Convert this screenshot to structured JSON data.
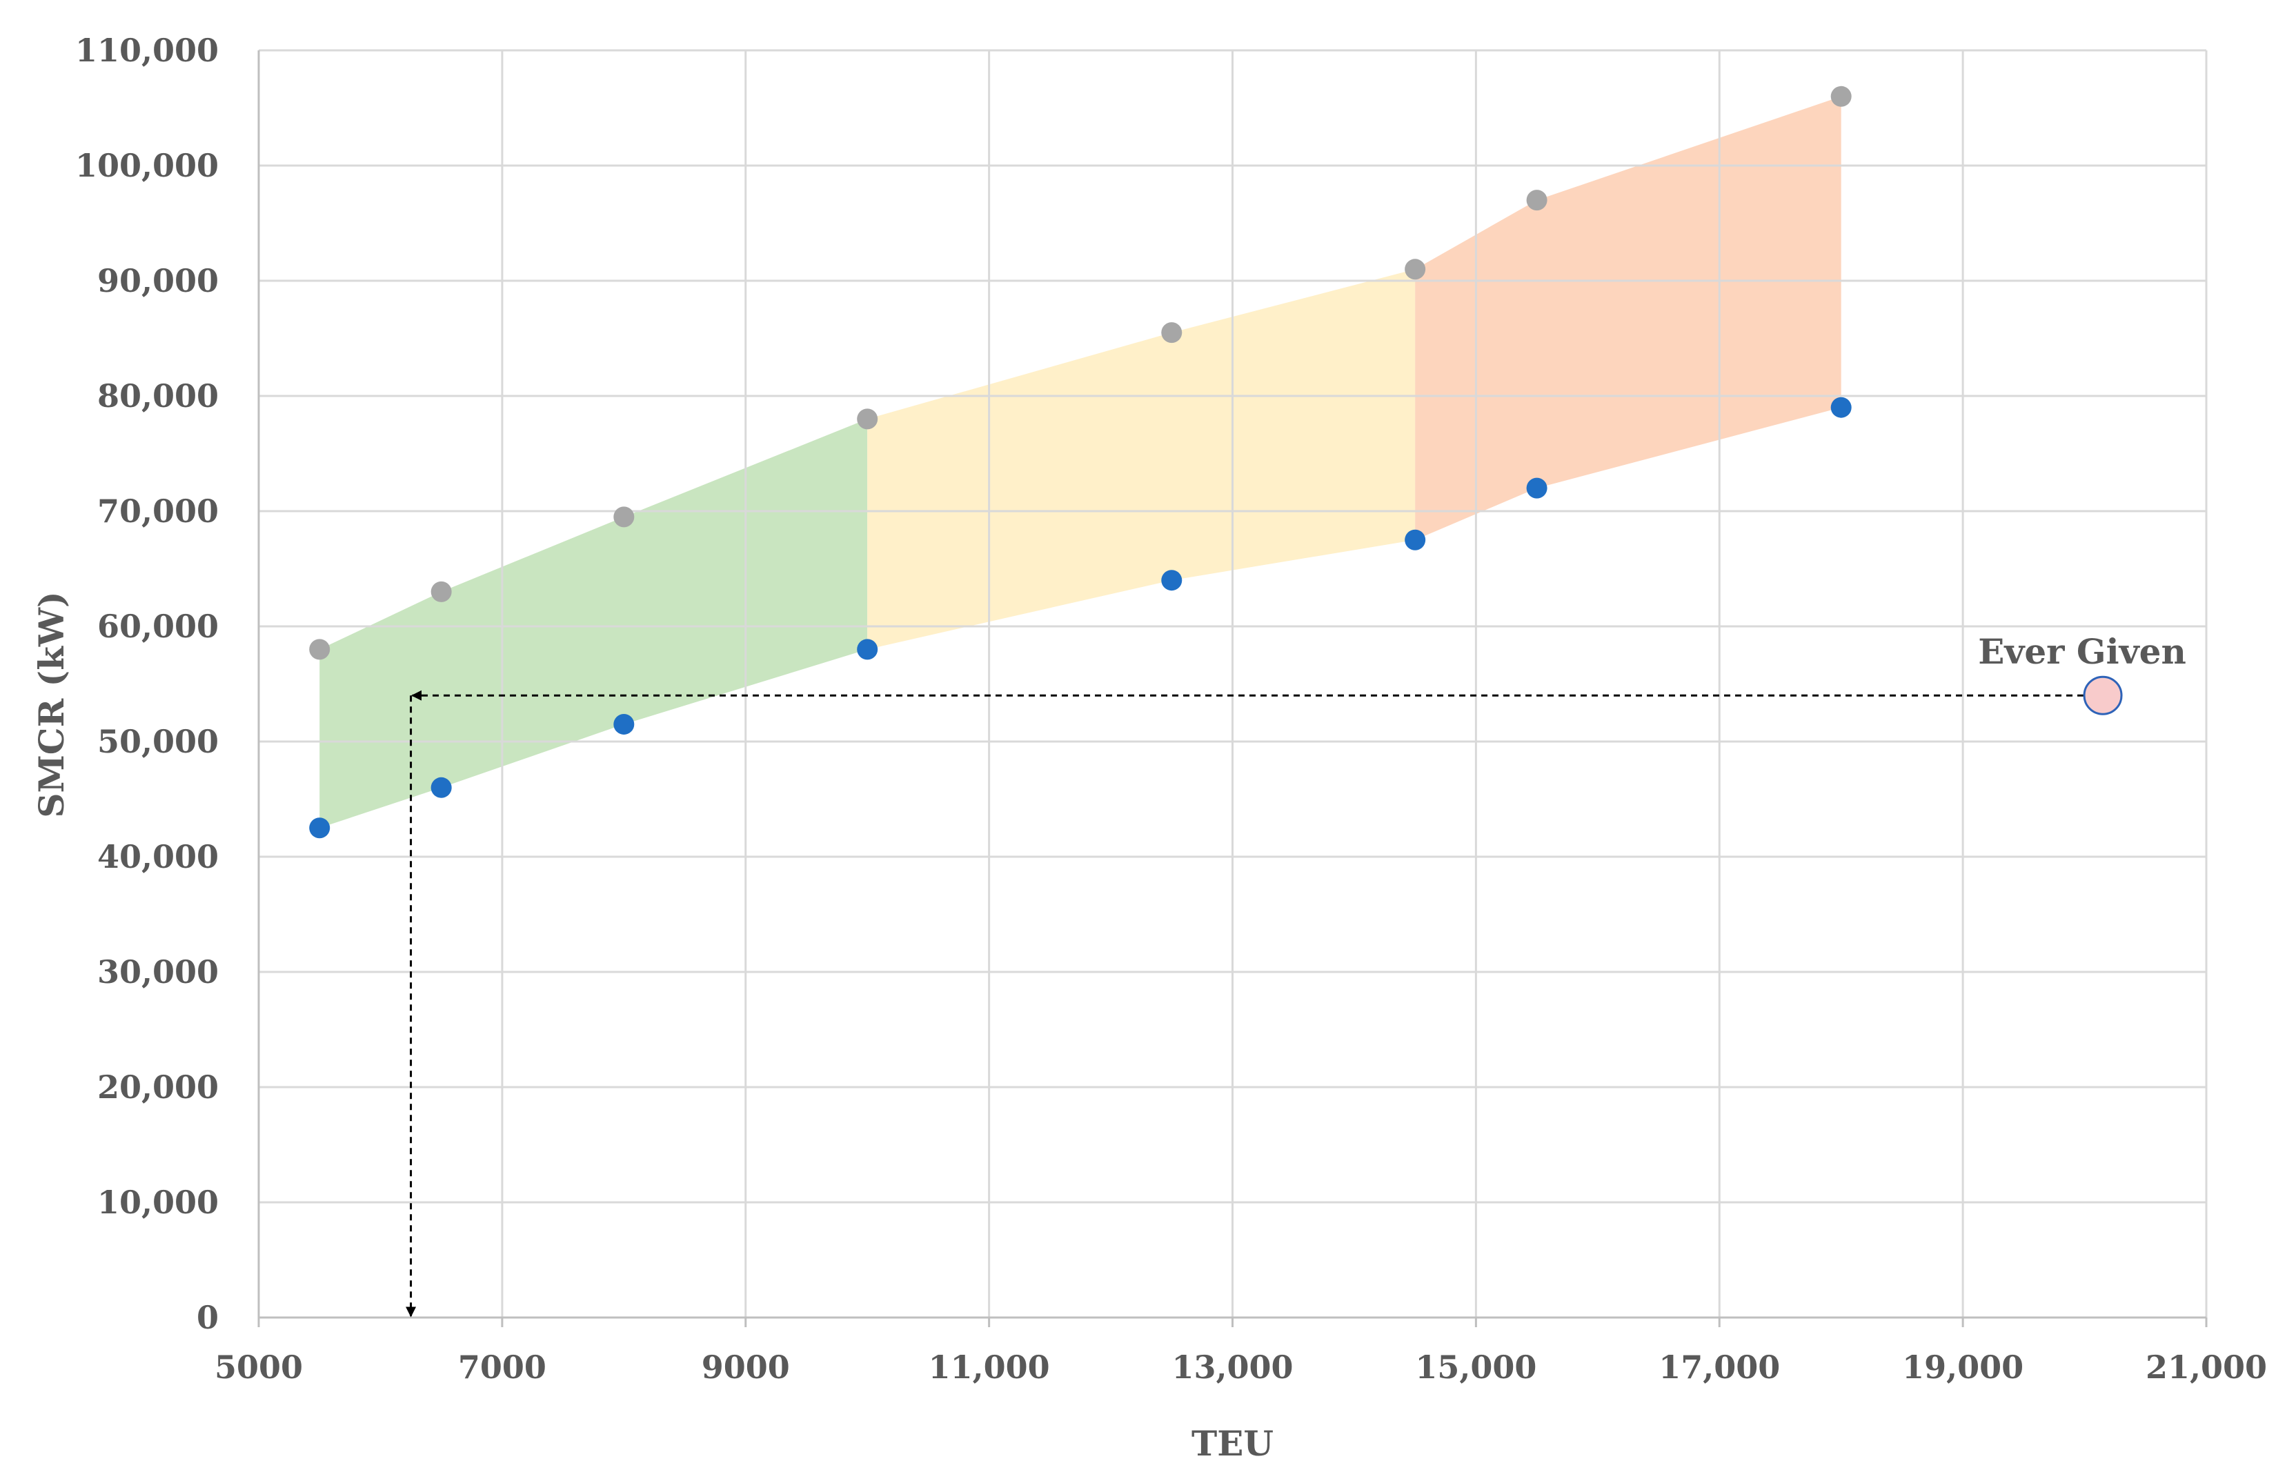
{
  "chart_data": {
    "type": "scatter",
    "title": "",
    "xlabel": "TEU",
    "ylabel": "SMCR (kW)",
    "xlim": [
      5000,
      21000
    ],
    "ylim": [
      0,
      110000
    ],
    "x_ticks": [
      5000,
      7000,
      9000,
      11000,
      13000,
      15000,
      17000,
      19000,
      21000
    ],
    "x_tick_labels": [
      "5000",
      "7000",
      "9000",
      "11,000",
      "13,000",
      "15,000",
      "17,000",
      "19,000",
      "21,000"
    ],
    "y_ticks": [
      0,
      10000,
      20000,
      30000,
      40000,
      50000,
      60000,
      70000,
      80000,
      90000,
      100000,
      110000
    ],
    "y_tick_labels": [
      "0",
      "10,000",
      "20,000",
      "30,000",
      "40,000",
      "50,000",
      "60,000",
      "70,000",
      "80,000",
      "90,000",
      "100,000",
      "110,000"
    ],
    "grid": true,
    "legend": "none",
    "series": [
      {
        "color": "#a6a6a6",
        "x": [
          5500,
          6500,
          8000,
          10000,
          12500,
          14500,
          15500,
          18000
        ],
        "y": [
          58000,
          63000,
          69500,
          78000,
          85500,
          91000,
          97000,
          106000
        ]
      },
      {
        "color": "#1f6fc5",
        "x": [
          5500,
          6500,
          8000,
          10000,
          12500,
          14500,
          15500,
          18000
        ],
        "y": [
          42500,
          46000,
          51500,
          58000,
          64000,
          67500,
          72000,
          79000
        ]
      }
    ],
    "bands": [
      {
        "color": "#c9e5c0",
        "x_range": [
          5500,
          10000
        ]
      },
      {
        "color": "#fff0c9",
        "x_range": [
          10000,
          14500
        ]
      },
      {
        "color": "#fdd5bd",
        "x_range": [
          14500,
          18000
        ]
      }
    ],
    "annotations": [
      {
        "label": "Ever Given",
        "x": 20150,
        "y": 54000,
        "fill": "#f8cbcb",
        "stroke": "#2e63b8",
        "arrow_to_y_at_x": 6250
      }
    ]
  }
}
